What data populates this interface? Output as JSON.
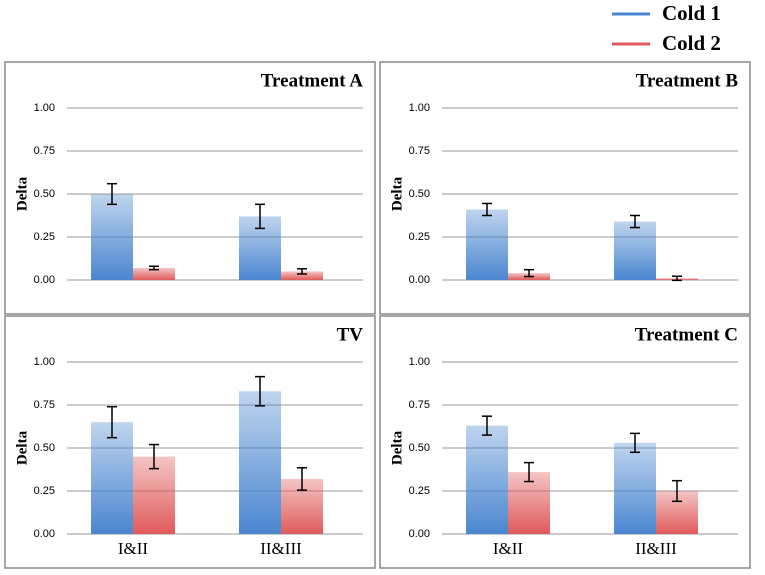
{
  "chart_data": [
    {
      "type": "bar",
      "title": "Treatment A",
      "y_label": "Delta",
      "categories": [
        null,
        null
      ],
      "series": [
        {
          "name": "Cold 1",
          "color": "#4a86d0",
          "values": [
            0.5,
            0.37
          ],
          "errors": [
            0.06,
            0.07
          ]
        },
        {
          "name": "Cold 2",
          "color": "#e05a5a",
          "values": [
            0.07,
            0.05
          ],
          "errors": [
            0.01,
            0.015
          ]
        }
      ],
      "ylim": [
        0,
        1
      ],
      "yticks": [
        {
          "value": 0,
          "label": "0.00"
        },
        0.25,
        {
          "value": 0.5,
          "label": "0.50"
        },
        0.75,
        {
          "value": 1,
          "label": "1.00"
        }
      ],
      "grid": true
    },
    {
      "type": "bar",
      "title": "Treatment B",
      "y_label": "Delta",
      "categories": [
        null,
        null
      ],
      "series": [
        {
          "color": "#4a86d0",
          "values": [
            0.41,
            0.34
          ],
          "errors": [
            0.035,
            0.035
          ]
        },
        {
          "color": "#e05a5a",
          "values": [
            0.04,
            0.01
          ],
          "errors": [
            0.02,
            0.012
          ]
        }
      ],
      "ylim": [
        0,
        1
      ],
      "yticks": [
        {
          "value": 0,
          "label": "0.00"
        },
        0.25,
        {
          "value": 0.5,
          "label": "0.50"
        },
        0.75,
        {
          "value": 1,
          "label": "1.00"
        }
      ],
      "grid": true
    },
    {
      "type": "bar",
      "title": "TV",
      "y_label": "Delta",
      "categories": [
        "I&II",
        "II&III"
      ],
      "series": [
        {
          "color": "#4a86d0",
          "values": [
            0.65,
            0.83
          ],
          "errors": [
            0.09,
            0.085
          ]
        },
        {
          "color": "#e05a5a",
          "values": [
            0.45,
            0.32
          ],
          "errors": [
            0.07,
            0.065
          ]
        }
      ],
      "ylim": [
        0,
        1
      ],
      "yticks": [
        {
          "value": 0,
          "label": "0.00"
        },
        0.25,
        {
          "value": 0.5,
          "label": "0.50"
        },
        0.75,
        {
          "value": 1,
          "label": "1.00"
        }
      ],
      "grid": true
    },
    {
      "type": "bar",
      "title": "Treatment C",
      "y_label": "Delta",
      "categories": [
        "I&II",
        "II&III"
      ],
      "series": [
        {
          "color": "#4a86d0",
          "values": [
            0.63,
            0.53
          ],
          "errors": [
            0.055,
            0.055
          ]
        },
        {
          "color": "#e05a5a",
          "values": [
            0.36,
            0.25
          ],
          "errors": [
            0.055,
            0.06
          ]
        }
      ],
      "ylim": [
        0,
        1
      ],
      "yticks": [
        {
          "value": 0,
          "label": "0.00"
        },
        0.25,
        {
          "value": 0.5,
          "label": "0.50"
        },
        0.75,
        {
          "value": 1,
          "label": "1.00"
        }
      ],
      "grid": true
    }
  ]
}
